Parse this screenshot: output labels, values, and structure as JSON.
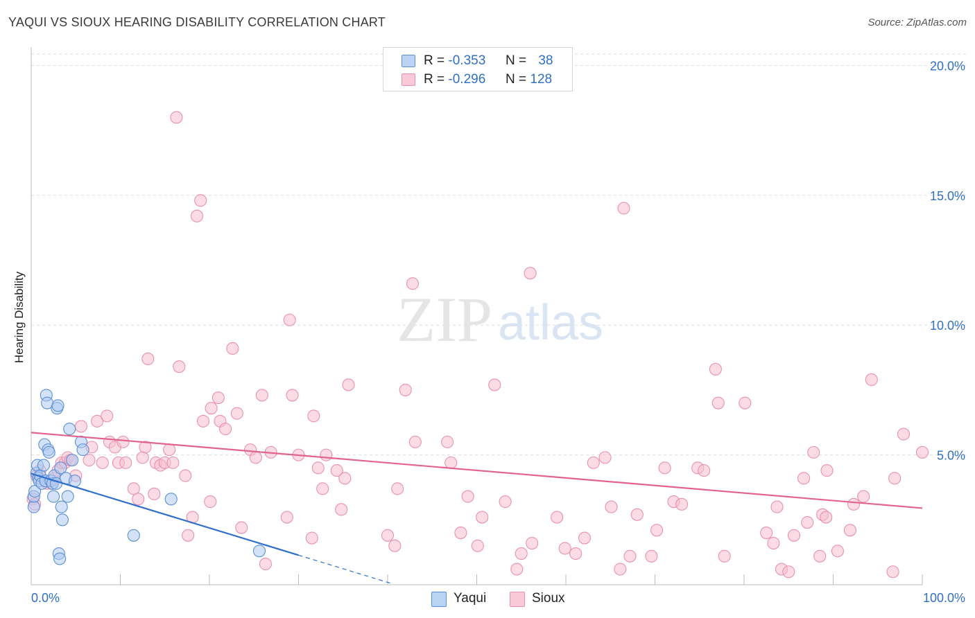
{
  "title": "YAQUI VS SIOUX HEARING DISABILITY CORRELATION CHART",
  "source": "Source: ZipAtlas.com",
  "watermark": {
    "zip": "ZIP",
    "atlas": "atlas"
  },
  "legend": {
    "r_label": "R =",
    "n_label": "N =",
    "series": [
      {
        "name": "Yaqui",
        "r": "-0.353",
        "n": "38"
      },
      {
        "name": "Sioux",
        "r": "-0.296",
        "n": "128"
      }
    ]
  },
  "colors": {
    "yaqui_fill": "#aecbf0",
    "yaqui_stroke": "#5b8fd6",
    "yaqui_line": "#2f6fcb",
    "sioux_fill": "#f7bfd0",
    "sioux_stroke": "#e990ae",
    "sioux_line": "#e2648e",
    "tick_label": "#2f6fc4",
    "grid": "#dedede",
    "axis": "#bbbbbb"
  },
  "chart_data": {
    "type": "scatter",
    "title": "YAQUI VS SIOUX HEARING DISABILITY CORRELATION CHART",
    "xlabel": "",
    "ylabel": "Hearing Disability",
    "xlim": [
      0,
      100
    ],
    "ylim": [
      0,
      20.6
    ],
    "x_tick_labels": [
      {
        "value": 0,
        "label": "0.0%"
      },
      {
        "value": 100,
        "label": "100.0%"
      }
    ],
    "y_tick_labels": [
      {
        "value": 5,
        "label": "5.0%"
      },
      {
        "value": 10,
        "label": "10.0%"
      },
      {
        "value": 15,
        "label": "15.0%"
      },
      {
        "value": 20,
        "label": "20.0%"
      }
    ],
    "legend_position": "top-center",
    "series": [
      {
        "name": "Yaqui",
        "points": [
          [
            0.3,
            3.0
          ],
          [
            0.3,
            3.4
          ],
          [
            0.4,
            3.6
          ],
          [
            0.6,
            4.3
          ],
          [
            0.7,
            4.6
          ],
          [
            0.8,
            4.1
          ],
          [
            0.9,
            4.0
          ],
          [
            1.0,
            4.2
          ],
          [
            1.2,
            3.9
          ],
          [
            1.4,
            4.6
          ],
          [
            1.5,
            5.4
          ],
          [
            1.6,
            4.0
          ],
          [
            1.7,
            7.3
          ],
          [
            1.8,
            7.0
          ],
          [
            1.9,
            5.2
          ],
          [
            2.0,
            5.1
          ],
          [
            2.2,
            4.0
          ],
          [
            2.4,
            3.9
          ],
          [
            2.5,
            3.4
          ],
          [
            2.6,
            4.2
          ],
          [
            2.8,
            3.9
          ],
          [
            2.9,
            6.8
          ],
          [
            3.0,
            6.9
          ],
          [
            3.1,
            1.2
          ],
          [
            3.2,
            1.0
          ],
          [
            3.3,
            4.5
          ],
          [
            3.4,
            3.0
          ],
          [
            3.5,
            2.5
          ],
          [
            3.9,
            4.1
          ],
          [
            4.1,
            3.4
          ],
          [
            4.3,
            6.0
          ],
          [
            4.6,
            4.8
          ],
          [
            4.9,
            4.0
          ],
          [
            5.6,
            5.5
          ],
          [
            5.8,
            5.2
          ],
          [
            11.5,
            1.9
          ],
          [
            15.7,
            3.3
          ],
          [
            25.6,
            1.3
          ]
        ],
        "trend": {
          "x": [
            0,
            30
          ],
          "y": [
            4.28,
            1.14
          ]
        },
        "trend_extension": {
          "x": [
            30,
            40.5
          ],
          "y": [
            1.14,
            0.04
          ]
        }
      },
      {
        "name": "Sioux",
        "points": [
          [
            0.2,
            3.3
          ],
          [
            0.4,
            3.1
          ],
          [
            0.6,
            4.2
          ],
          [
            1.0,
            4.4
          ],
          [
            1.8,
            3.9
          ],
          [
            2.3,
            3.9
          ],
          [
            2.6,
            4.1
          ],
          [
            3.0,
            4.4
          ],
          [
            3.4,
            4.7
          ],
          [
            3.8,
            4.7
          ],
          [
            4.1,
            4.9
          ],
          [
            4.4,
            4.8
          ],
          [
            5.0,
            4.2
          ],
          [
            5.6,
            6.1
          ],
          [
            6.5,
            4.8
          ],
          [
            6.8,
            5.3
          ],
          [
            7.4,
            6.3
          ],
          [
            8.0,
            4.7
          ],
          [
            8.5,
            6.5
          ],
          [
            8.8,
            5.5
          ],
          [
            9.4,
            5.3
          ],
          [
            9.8,
            4.7
          ],
          [
            10.3,
            5.5
          ],
          [
            10.6,
            4.7
          ],
          [
            11.5,
            3.7
          ],
          [
            12.0,
            3.3
          ],
          [
            12.5,
            4.9
          ],
          [
            12.8,
            5.3
          ],
          [
            13.1,
            8.7
          ],
          [
            13.8,
            3.5
          ],
          [
            14.0,
            4.7
          ],
          [
            14.5,
            4.6
          ],
          [
            15.0,
            4.7
          ],
          [
            15.5,
            5.2
          ],
          [
            15.9,
            4.7
          ],
          [
            16.3,
            18.0
          ],
          [
            16.6,
            8.4
          ],
          [
            17.3,
            4.2
          ],
          [
            17.6,
            1.9
          ],
          [
            18.1,
            2.6
          ],
          [
            18.6,
            14.2
          ],
          [
            19.0,
            14.8
          ],
          [
            19.3,
            6.3
          ],
          [
            20.1,
            3.2
          ],
          [
            20.2,
            6.8
          ],
          [
            21.0,
            7.2
          ],
          [
            21.2,
            6.3
          ],
          [
            21.8,
            6.0
          ],
          [
            22.6,
            9.1
          ],
          [
            23.1,
            6.6
          ],
          [
            23.6,
            2.2
          ],
          [
            24.6,
            5.2
          ],
          [
            25.2,
            4.9
          ],
          [
            25.9,
            7.3
          ],
          [
            26.3,
            0.8
          ],
          [
            26.9,
            5.1
          ],
          [
            28.7,
            2.6
          ],
          [
            29.0,
            10.2
          ],
          [
            29.3,
            7.3
          ],
          [
            30.0,
            5.0
          ],
          [
            31.5,
            1.8
          ],
          [
            31.7,
            6.5
          ],
          [
            32.2,
            4.5
          ],
          [
            32.7,
            3.7
          ],
          [
            33.1,
            5.0
          ],
          [
            34.3,
            4.4
          ],
          [
            34.8,
            2.9
          ],
          [
            35.2,
            4.1
          ],
          [
            35.6,
            7.7
          ],
          [
            40.0,
            1.9
          ],
          [
            40.8,
            1.5
          ],
          [
            41.1,
            3.7
          ],
          [
            42.0,
            7.5
          ],
          [
            42.8,
            11.6
          ],
          [
            43.1,
            5.5
          ],
          [
            46.7,
            5.5
          ],
          [
            47.1,
            4.7
          ],
          [
            48.2,
            2.0
          ],
          [
            49.0,
            3.4
          ],
          [
            50.1,
            1.5
          ],
          [
            50.6,
            2.6
          ],
          [
            52.0,
            7.7
          ],
          [
            53.2,
            3.2
          ],
          [
            54.5,
            0.6
          ],
          [
            55.0,
            1.2
          ],
          [
            56.0,
            12.0
          ],
          [
            56.2,
            1.6
          ],
          [
            59.0,
            2.6
          ],
          [
            59.9,
            1.4
          ],
          [
            61.1,
            1.2
          ],
          [
            62.1,
            1.8
          ],
          [
            63.1,
            4.7
          ],
          [
            64.4,
            4.9
          ],
          [
            65.1,
            3.0
          ],
          [
            66.1,
            0.6
          ],
          [
            66.5,
            14.5
          ],
          [
            67.2,
            1.1
          ],
          [
            68.0,
            2.7
          ],
          [
            69.6,
            1.1
          ],
          [
            70.2,
            2.1
          ],
          [
            71.1,
            4.5
          ],
          [
            72.1,
            3.2
          ],
          [
            73.0,
            3.1
          ],
          [
            74.8,
            4.5
          ],
          [
            75.5,
            4.4
          ],
          [
            76.8,
            8.3
          ],
          [
            77.1,
            7.0
          ],
          [
            77.8,
            1.1
          ],
          [
            80.1,
            7.0
          ],
          [
            82.5,
            2.0
          ],
          [
            83.3,
            1.6
          ],
          [
            83.7,
            3.0
          ],
          [
            84.2,
            0.6
          ],
          [
            85.0,
            0.5
          ],
          [
            85.6,
            1.9
          ],
          [
            86.7,
            4.1
          ],
          [
            87.1,
            2.4
          ],
          [
            87.8,
            5.1
          ],
          [
            88.5,
            1.1
          ],
          [
            88.8,
            2.7
          ],
          [
            89.2,
            2.6
          ],
          [
            89.3,
            4.4
          ],
          [
            90.5,
            1.3
          ],
          [
            91.9,
            2.1
          ],
          [
            92.3,
            3.1
          ],
          [
            93.4,
            3.4
          ],
          [
            94.3,
            7.9
          ],
          [
            96.7,
            0.5
          ],
          [
            96.9,
            4.1
          ],
          [
            97.9,
            5.8
          ],
          [
            100.0,
            5.1
          ]
        ],
        "trend": {
          "x": [
            0,
            100
          ],
          "y": [
            5.86,
            2.95
          ]
        }
      }
    ]
  }
}
